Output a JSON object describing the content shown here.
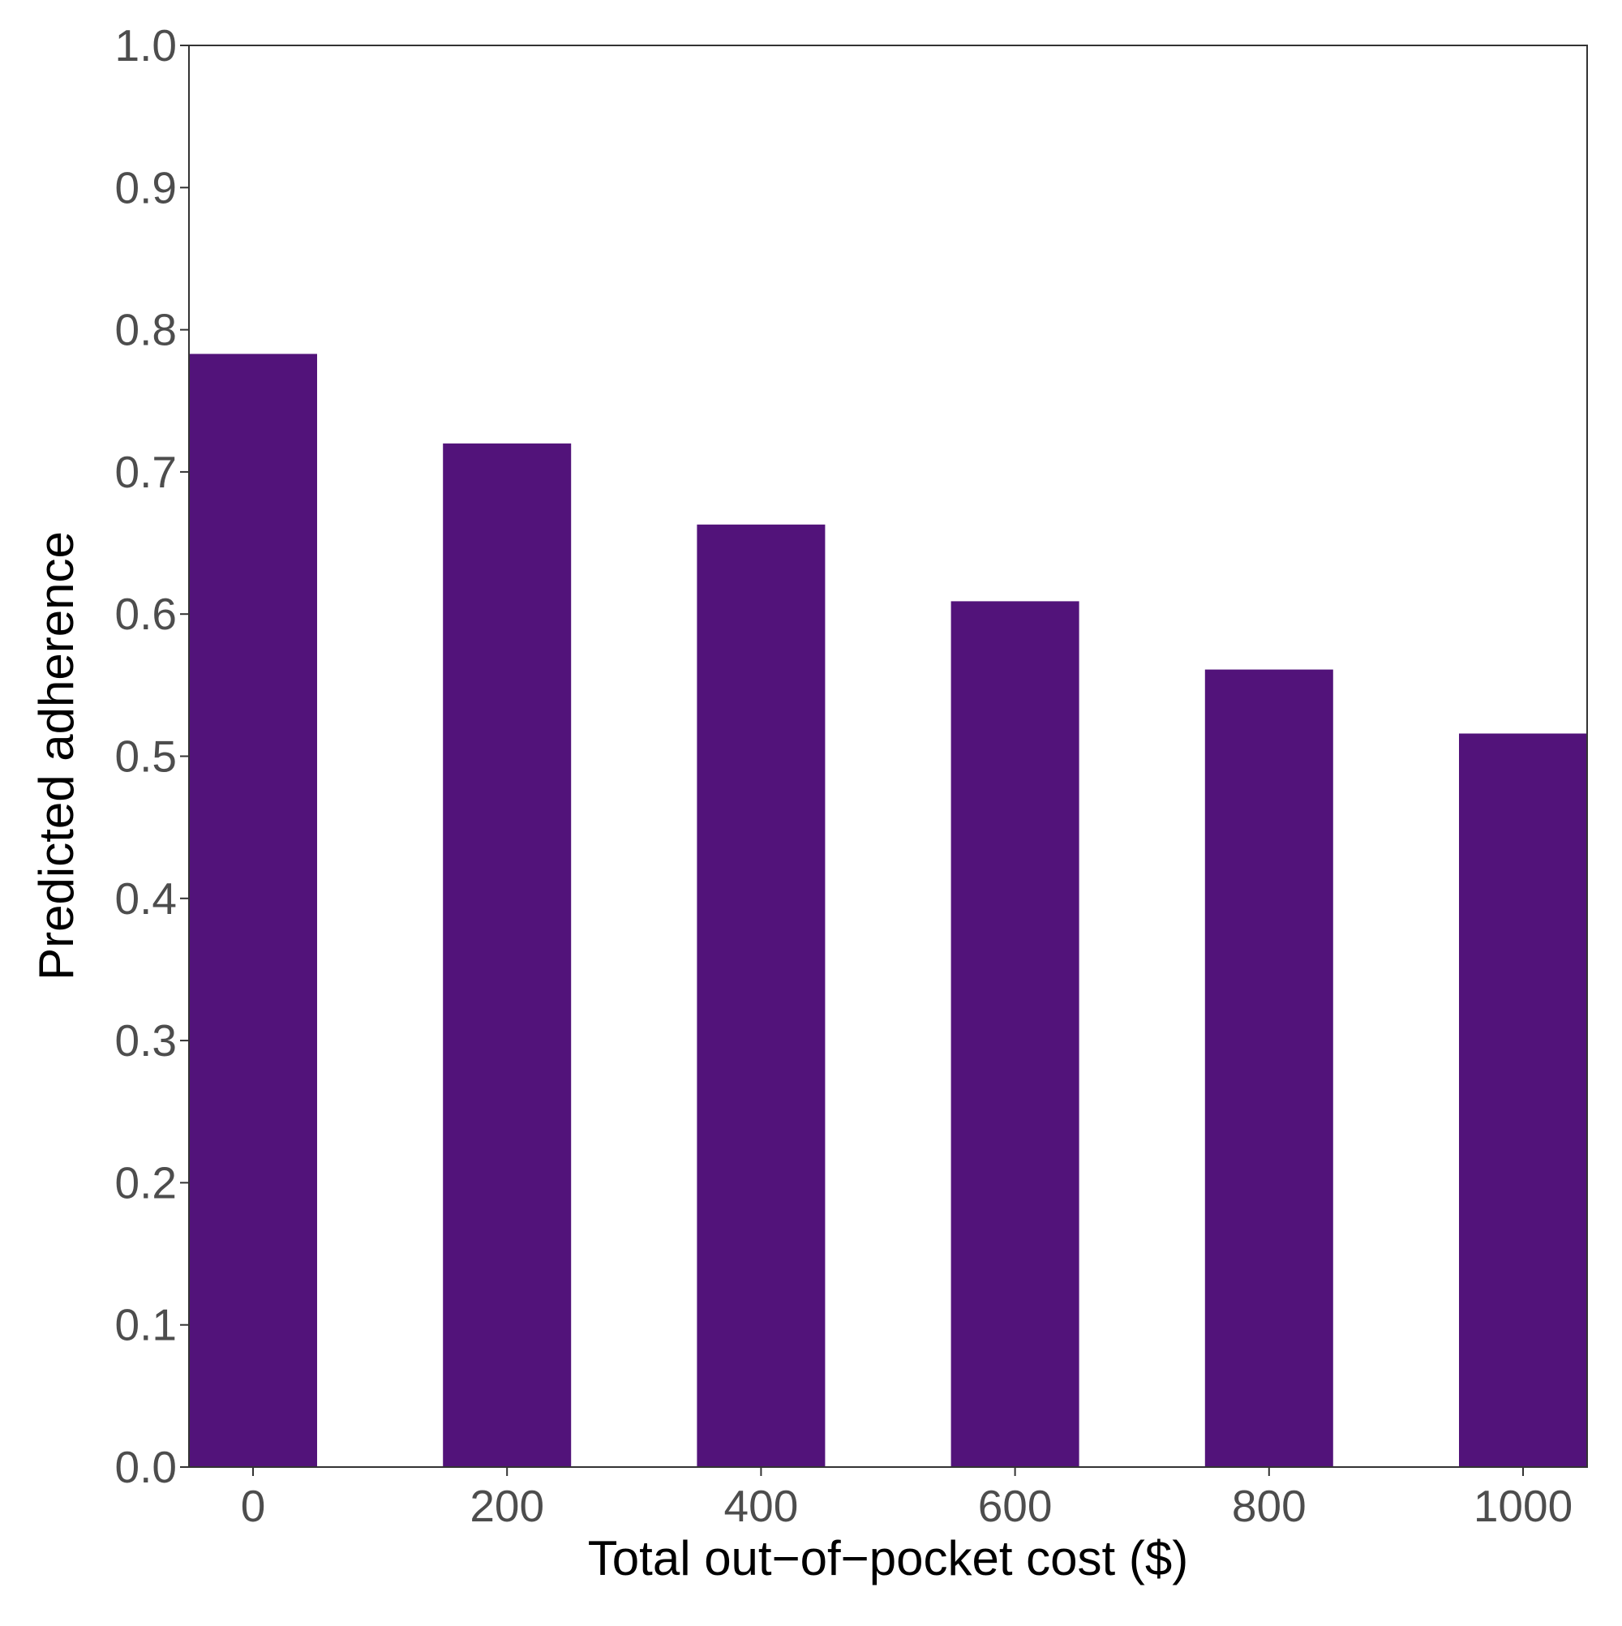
{
  "chart_data": {
    "type": "bar",
    "categories": [
      "0",
      "200",
      "400",
      "600",
      "800",
      "1000"
    ],
    "values": [
      0.783,
      0.72,
      0.663,
      0.609,
      0.561,
      0.516
    ],
    "xlabel": "Total out−of−pocket cost ($)",
    "ylabel": "Predicted adherence",
    "ylim": [
      0,
      1
    ],
    "yticks": [
      "0.0",
      "0.1",
      "0.2",
      "0.3",
      "0.4",
      "0.5",
      "0.6",
      "0.7",
      "0.8",
      "0.9",
      "1.0"
    ],
    "grid": false,
    "legend": "none",
    "bar_color": "#52137A"
  }
}
